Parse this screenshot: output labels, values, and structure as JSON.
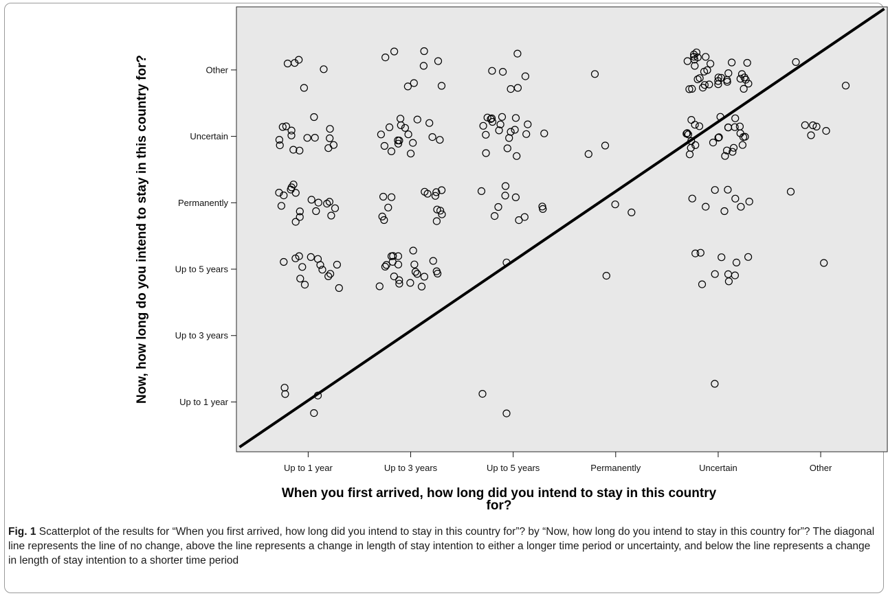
{
  "chart_data": {
    "type": "scatter",
    "title": "",
    "xlabel": "When you first arrived, how long did you intend to stay in this country for?",
    "ylabel": "Now, how long do you intend to stay in this country for?",
    "categories": [
      "Up to 1 year",
      "Up to 3 years",
      "Up to 5 years",
      "Permanently",
      "Uncertain",
      "Other"
    ],
    "x_ticks": [
      "Up to 1 year",
      "Up to 3 years",
      "Up to 5 years",
      "Permanently",
      "Uncertain",
      "Other"
    ],
    "y_ticks": [
      "Up to 1 year",
      "Up to 3 years",
      "Up to 5 years",
      "Permanently",
      "Uncertain",
      "Other"
    ],
    "xlim": [
      0.3,
      6.65
    ],
    "ylim": [
      0.25,
      6.95
    ],
    "grid": false,
    "background": "#e8e8e8",
    "marker_color": "#000000",
    "marker": "open-circle",
    "jitter": true,
    "reference_line": {
      "type": "diagonal",
      "from": [
        0.33,
        0.32
      ],
      "to": [
        6.62,
        6.92
      ],
      "color": "#000000"
    },
    "points": [
      [
        1,
        1,
        4
      ],
      [
        1,
        3,
        14
      ],
      [
        1,
        4,
        17
      ],
      [
        1,
        5,
        15
      ],
      [
        1,
        6,
        5
      ],
      [
        2,
        3,
        21
      ],
      [
        2,
        4,
        14
      ],
      [
        2,
        5,
        17
      ],
      [
        2,
        6,
        8
      ],
      [
        3,
        1,
        2
      ],
      [
        3,
        3,
        1
      ],
      [
        3,
        4,
        10
      ],
      [
        3,
        5,
        19
      ],
      [
        3,
        6,
        6
      ],
      [
        4,
        3,
        1
      ],
      [
        4,
        4,
        2
      ],
      [
        4,
        5,
        2
      ],
      [
        4,
        6,
        1
      ],
      [
        4,
        7,
        0
      ],
      [
        5,
        1,
        1
      ],
      [
        5,
        3,
        10
      ],
      [
        5,
        4,
        8
      ],
      [
        5,
        5,
        27
      ],
      [
        5,
        6,
        33
      ],
      [
        5,
        7,
        0
      ],
      [
        6,
        3,
        1
      ],
      [
        6,
        4,
        1
      ],
      [
        6,
        5,
        5
      ],
      [
        6,
        6,
        2
      ],
      [
        6,
        7,
        0
      ]
    ]
  },
  "caption": {
    "label": "Fig. 1",
    "text": " Scatterplot of the results for “When you first arrived, how long did you intend to stay in this country for”? by “Now, how long do you intend to stay in this country for”? The diagonal line represents the line of no change, above the line represents a change in length of stay intention to either a longer time period or uncertainty, and below the line represents a change in length of stay intention to a shorter time period"
  }
}
